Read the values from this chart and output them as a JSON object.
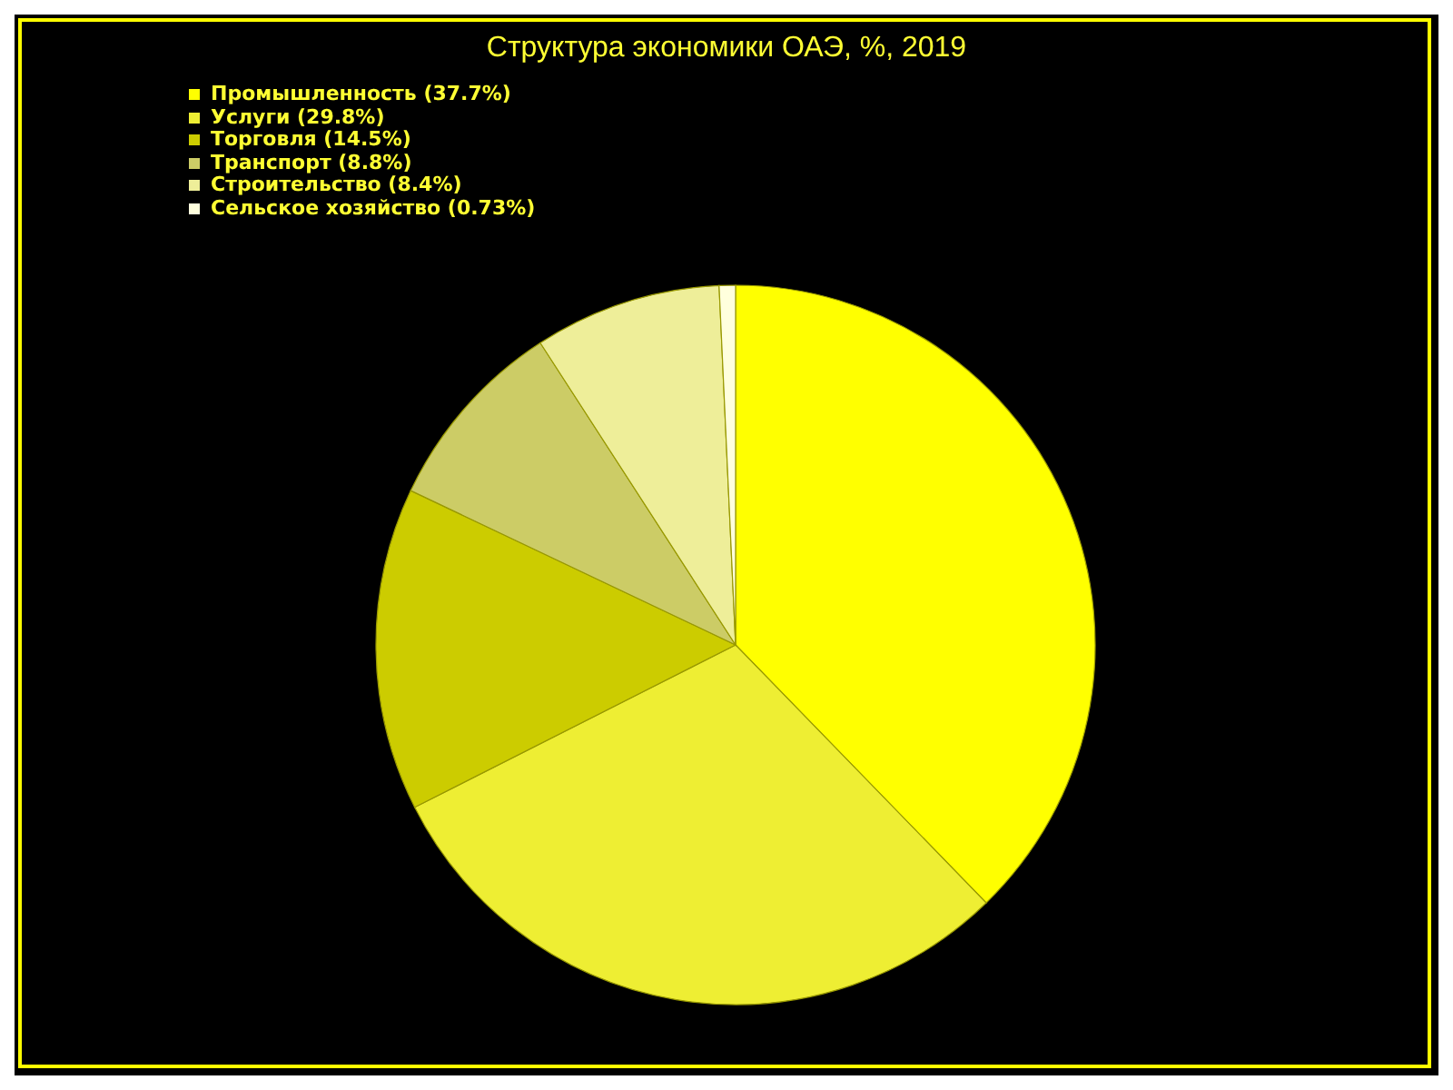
{
  "chart_data": {
    "type": "pie",
    "title": "Структура экономики ОАЭ, %, 2019",
    "categories": [
      "Промышленность (37.7%)",
      "Услуги (29.8%)",
      "Торговля (14.5%)",
      "Транспорт (8.8%)",
      "Строительство (8.4%)",
      "Сельское хозяйство (0.73%)"
    ],
    "values": [
      37.7,
      29.8,
      14.5,
      8.8,
      8.4,
      0.73
    ],
    "colors": [
      "#ffff00",
      "#eeee33",
      "#cccc00",
      "#cccc66",
      "#eeee99",
      "#ffffdd"
    ],
    "legend": "top left"
  }
}
